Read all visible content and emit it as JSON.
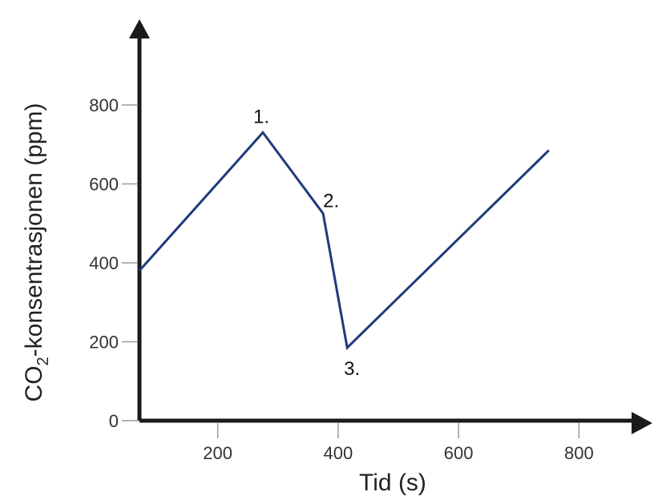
{
  "chart_data": {
    "type": "line",
    "xlabel": "Tid (s)",
    "ylabel_main": "CO",
    "ylabel_sub": "2",
    "ylabel_rest": "-konsentrasjonen (ppm)",
    "x_ticks": [
      200,
      400,
      600,
      800
    ],
    "y_ticks": [
      0,
      200,
      400,
      600,
      800
    ],
    "xlim": [
      70,
      890
    ],
    "ylim": [
      0,
      1005
    ],
    "grid": false,
    "series": [
      {
        "color": "#1f3a7a",
        "x": [
          70,
          275,
          375,
          415,
          750
        ],
        "y": [
          380,
          730,
          525,
          185,
          685
        ]
      }
    ],
    "annotations": [
      {
        "text": "1.",
        "x": 275,
        "y": 730
      },
      {
        "text": "2.",
        "x": 375,
        "y": 525
      },
      {
        "text": "3.",
        "x": 415,
        "y": 185
      }
    ],
    "axis_color": "#1a1a1a"
  }
}
